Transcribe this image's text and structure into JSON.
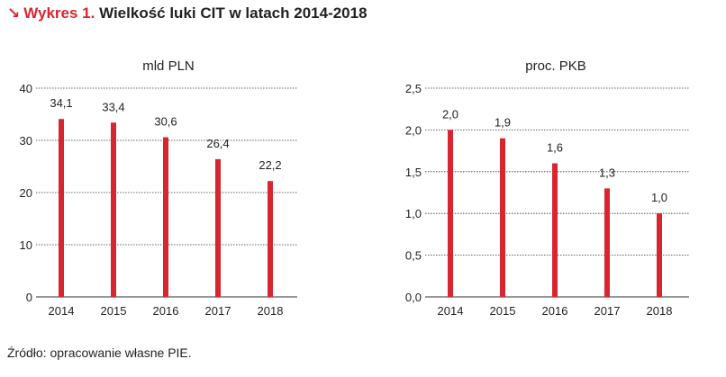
{
  "header": {
    "arrow": "↘",
    "prefix": "Wykres 1.",
    "title": "Wielkość luki CIT w latach 2014-2018"
  },
  "footer": {
    "source": "Źródło: opracowanie własne PIE."
  },
  "colors": {
    "bar": "#d7262f",
    "accent": "#d7262f",
    "grid": "#333333"
  },
  "chart_data": [
    {
      "type": "bar",
      "title": "mld PLN",
      "categories": [
        "2014",
        "2015",
        "2016",
        "2017",
        "2018"
      ],
      "values": [
        34.1,
        33.4,
        30.6,
        26.4,
        22.2
      ],
      "data_labels": [
        "34,1",
        "33,4",
        "30,6",
        "26,4",
        "22,2"
      ],
      "yticks": [
        0,
        10,
        20,
        30,
        40
      ],
      "ytick_labels": [
        "0",
        "10",
        "20",
        "30",
        "40"
      ],
      "ylim": [
        0,
        40
      ],
      "grid": true,
      "grid_style": "dotted",
      "xlabel": "",
      "ylabel": ""
    },
    {
      "type": "bar",
      "title": "proc. PKB",
      "categories": [
        "2014",
        "2015",
        "2016",
        "2017",
        "2018"
      ],
      "values": [
        2.0,
        1.9,
        1.6,
        1.3,
        1.0
      ],
      "data_labels": [
        "2,0",
        "1,9",
        "1,6",
        "1,3",
        "1,0"
      ],
      "yticks": [
        0,
        0.5,
        1.0,
        1.5,
        2.0,
        2.5
      ],
      "ytick_labels": [
        "0,0",
        "0,5",
        "1,0",
        "1,5",
        "2,0",
        "2,5"
      ],
      "ylim": [
        0,
        2.5
      ],
      "grid": true,
      "grid_style": "dotted",
      "xlabel": "",
      "ylabel": ""
    }
  ]
}
